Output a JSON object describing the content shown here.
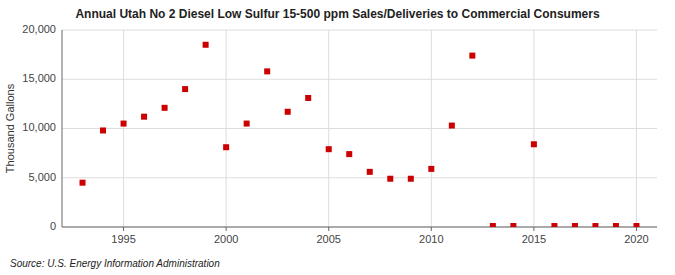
{
  "chart_data": {
    "type": "scatter",
    "title": "Annual Utah No 2 Diesel Low Sulfur 15-500 ppm Sales/Deliveries to Commercial Consumers",
    "ylabel": "Thousand Gallons",
    "annotations": [
      "Source: U.S. Energy Information Administration"
    ],
    "x": [
      1993,
      1994,
      1995,
      1996,
      1997,
      1998,
      1999,
      2000,
      2001,
      2002,
      2003,
      2004,
      2005,
      2006,
      2007,
      2008,
      2009,
      2010,
      2011,
      2012,
      2013,
      2014,
      2015,
      2016,
      2017,
      2018,
      2019,
      2020
    ],
    "values": [
      4500,
      9800,
      10500,
      11200,
      12100,
      14000,
      18500,
      8100,
      10500,
      15800,
      11700,
      13100,
      7900,
      7400,
      5600,
      4900,
      4900,
      5900,
      10300,
      17400,
      100,
      100,
      8400,
      100,
      100,
      100,
      100,
      100
    ],
    "color": "#cc0000",
    "marker": "square",
    "xlim": [
      1992,
      2021
    ],
    "ylim": [
      0,
      20000
    ],
    "xticks": [
      1995,
      2000,
      2005,
      2010,
      2015,
      2020
    ],
    "yticks": [
      0,
      {
        "value": 5000,
        "label": "5,000"
      },
      {
        "value": 10000,
        "label": "10,000"
      },
      {
        "value": 15000,
        "label": "15,000"
      },
      {
        "value": 20000,
        "label": "20,000"
      }
    ],
    "grid": true
  }
}
